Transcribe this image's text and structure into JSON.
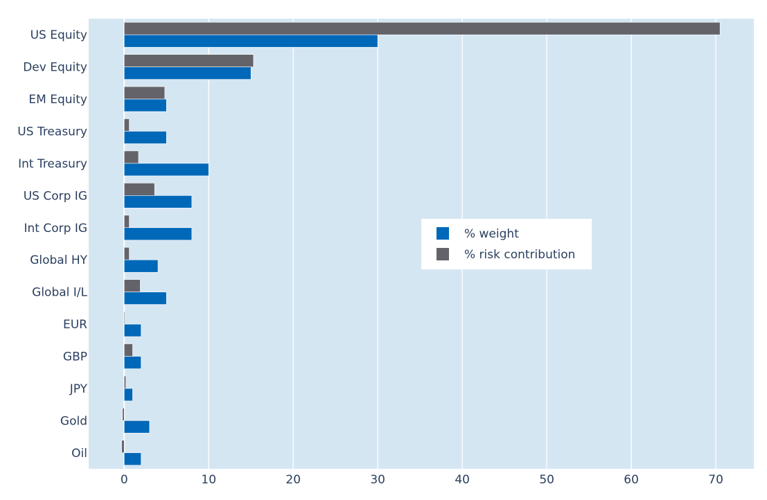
{
  "chart_data": {
    "type": "bar",
    "orientation": "horizontal",
    "categories": [
      "US Equity",
      "Dev Equity",
      "EM Equity",
      "US Treasury",
      "Int Treasury",
      "US Corp IG",
      "Int Corp IG",
      "Global HY",
      "Global I/L",
      "EUR",
      "GBP",
      "JPY",
      "Gold",
      "Oil"
    ],
    "series": [
      {
        "name": "% weight",
        "color": "#0068b8",
        "values": [
          30,
          15,
          5,
          5,
          10,
          8,
          8,
          4,
          5,
          2,
          2,
          1,
          3,
          2
        ]
      },
      {
        "name": "% risk contribution",
        "color": "#636369",
        "values": [
          70.5,
          15.3,
          4.8,
          0.6,
          1.7,
          3.6,
          0.6,
          0.6,
          1.9,
          0.1,
          1.0,
          0.2,
          -0.2,
          -0.3
        ]
      }
    ],
    "xlim": [
      -4.2,
      74.5
    ],
    "xticks": [
      0,
      10,
      20,
      30,
      40,
      50,
      60,
      70
    ],
    "title": "",
    "xlabel": "",
    "ylabel": "",
    "grid": true,
    "legend_position": "center-right",
    "plot_background": "#d5e6f3"
  }
}
